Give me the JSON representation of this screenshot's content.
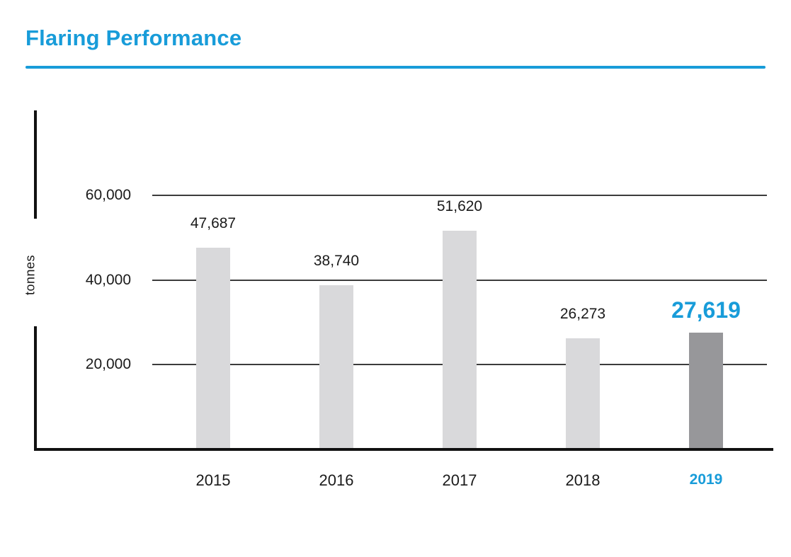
{
  "header": {
    "title": "Flaring Performance",
    "accent_color": "#189CD9"
  },
  "chart_data": {
    "type": "bar",
    "title": "Flaring Performance",
    "xlabel": "",
    "ylabel": "tonnes",
    "categories": [
      "2015",
      "2016",
      "2017",
      "2018",
      "2019"
    ],
    "values": [
      47687,
      38740,
      51620,
      26273,
      27619
    ],
    "value_labels": [
      "47,687",
      "38,740",
      "51,620",
      "26,273",
      "27,619"
    ],
    "ytick_values": [
      20000,
      40000,
      60000
    ],
    "ytick_labels": [
      "20,000",
      "40,000",
      "60,000"
    ],
    "ylim": [
      0,
      70000
    ],
    "grid": true,
    "legend": false,
    "highlight_index": 4,
    "highlight_category": "2019",
    "colors": {
      "bar": "#D9D9DB",
      "highlight_bar": "#97979A",
      "highlight_text": "#189CD9",
      "axis": "#111111",
      "gridline": "#3c3c3c",
      "label_text": "#1a1a1a"
    }
  }
}
